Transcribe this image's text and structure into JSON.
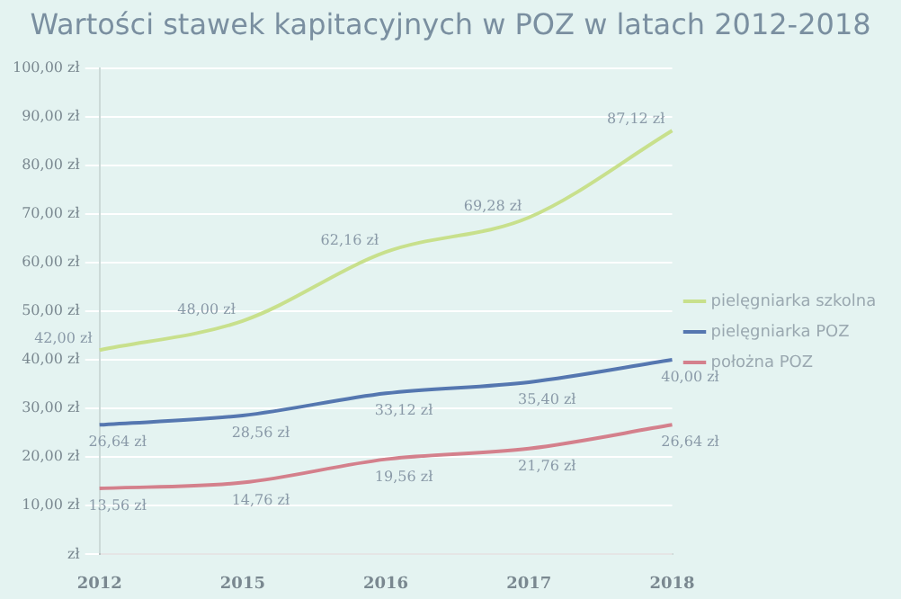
{
  "chart_data": {
    "type": "line",
    "title": "Wartości stawek kapitacyjnych w POZ w latach 2012-2018",
    "categories": [
      "2012",
      "2015",
      "2016",
      "2017",
      "2018"
    ],
    "series": [
      {
        "name": "pielęgniarka szkolna",
        "color": "#c8e08c",
        "values": [
          42.0,
          48.0,
          62.16,
          69.28,
          87.12
        ],
        "value_labels": [
          "42,00 zł",
          "48,00 zł",
          "62,16 zł",
          "69,28 zł",
          "87,12 zł"
        ]
      },
      {
        "name": "pielęgniarka POZ",
        "color": "#5577b0",
        "values": [
          26.64,
          28.56,
          33.12,
          35.4,
          40.0
        ],
        "value_labels": [
          "26,64 zł",
          "28,56 zł",
          "33,12 zł",
          "35,40 zł",
          "40,00 zł"
        ]
      },
      {
        "name": "położna POZ",
        "color": "#d4808c",
        "values": [
          13.56,
          14.76,
          19.56,
          21.76,
          26.64
        ],
        "value_labels": [
          "13,56 zł",
          "14,76 zł",
          "19,56 zł",
          "21,76 zł",
          "26,64 zł"
        ]
      }
    ],
    "ylim": [
      0,
      100
    ],
    "yticks": [
      {
        "value": 0,
        "label": "zł"
      },
      {
        "value": 10,
        "label": "10,00 zł"
      },
      {
        "value": 20,
        "label": "20,00 zł"
      },
      {
        "value": 30,
        "label": "30,00 zł"
      },
      {
        "value": 40,
        "label": "40,00 zł"
      },
      {
        "value": 50,
        "label": "50,00 zł"
      },
      {
        "value": 60,
        "label": "60,00 zł"
      },
      {
        "value": 70,
        "label": "70,00 zł"
      },
      {
        "value": 80,
        "label": "80,00 zł"
      },
      {
        "value": 90,
        "label": "90,00 zł"
      },
      {
        "value": 100,
        "label": "100,00 zł"
      }
    ],
    "grid": "y",
    "legend": "right",
    "marker": "none",
    "line_style": "solid"
  }
}
